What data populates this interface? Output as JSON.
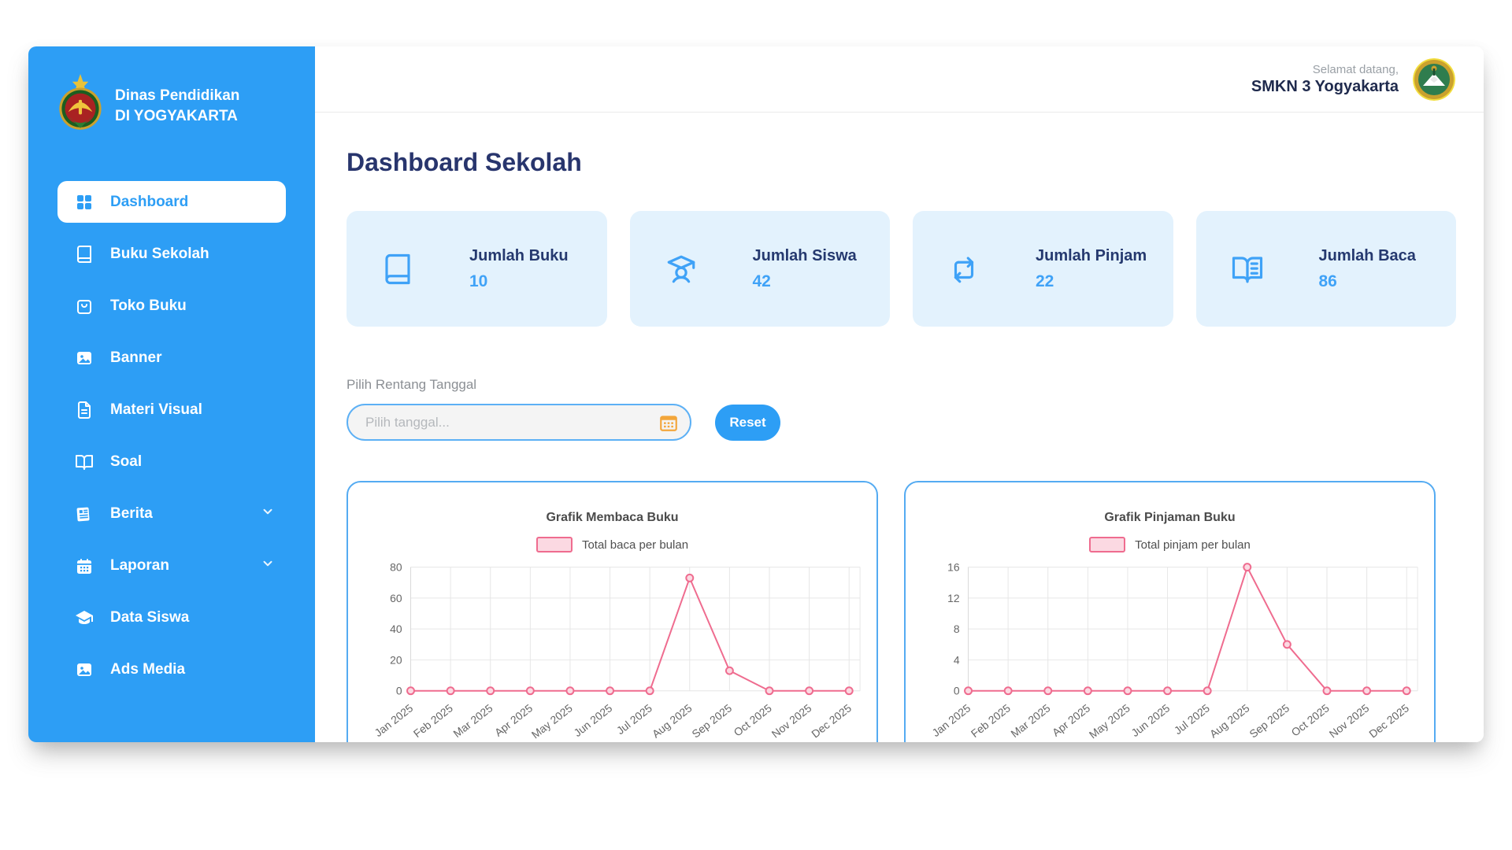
{
  "brand": {
    "line1": "Dinas Pendidikan",
    "line2": "DI YOGYAKARTA"
  },
  "sidebar": {
    "items": [
      {
        "label": "Dashboard",
        "icon": "grid-icon",
        "active": true,
        "chevron": false
      },
      {
        "label": "Buku Sekolah",
        "icon": "book-icon",
        "active": false,
        "chevron": false
      },
      {
        "label": "Toko Buku",
        "icon": "shopping-bag-icon",
        "active": false,
        "chevron": false
      },
      {
        "label": "Banner",
        "icon": "image-icon",
        "active": false,
        "chevron": false
      },
      {
        "label": "Materi Visual",
        "icon": "file-text-icon",
        "active": false,
        "chevron": false
      },
      {
        "label": "Soal",
        "icon": "open-book-icon",
        "active": false,
        "chevron": false
      },
      {
        "label": "Berita",
        "icon": "newspaper-icon",
        "active": false,
        "chevron": true
      },
      {
        "label": "Laporan",
        "icon": "calendar-icon",
        "active": false,
        "chevron": true
      },
      {
        "label": "Data Siswa",
        "icon": "graduation-cap-icon",
        "active": false,
        "chevron": false
      },
      {
        "label": "Ads Media",
        "icon": "media-image-icon",
        "active": false,
        "chevron": false
      }
    ]
  },
  "header": {
    "greeting": "Selamat datang,",
    "school_name": "SMKN 3 Yogyakarta"
  },
  "main": {
    "page_title": "Dashboard Sekolah"
  },
  "stats": [
    {
      "label": "Jumlah Buku",
      "value": "10",
      "icon": "book-icon"
    },
    {
      "label": "Jumlah Siswa",
      "value": "42",
      "icon": "student-icon"
    },
    {
      "label": "Jumlah Pinjam",
      "value": "22",
      "icon": "exchange-icon"
    },
    {
      "label": "Jumlah Baca",
      "value": "86",
      "icon": "open-book-lines-icon"
    }
  ],
  "filter": {
    "label": "Pilih Rentang Tanggal",
    "input_value": "",
    "input_placeholder": "Pilih tanggal...",
    "reset_label": "Reset"
  },
  "chart_data": [
    {
      "type": "line",
      "title": "Grafik Membaca Buku",
      "legend": "Total baca per bulan",
      "legend_position": "top",
      "categories": [
        "Jan 2025",
        "Feb 2025",
        "Mar 2025",
        "Apr 2025",
        "May 2025",
        "Jun 2025",
        "Jul 2025",
        "Aug 2025",
        "Sep 2025",
        "Oct 2025",
        "Nov 2025",
        "Dec 2025"
      ],
      "values": [
        0,
        0,
        0,
        0,
        0,
        0,
        0,
        73,
        13,
        0,
        0,
        0
      ],
      "xlabel": "",
      "ylabel": "",
      "ylim": [
        0,
        80
      ],
      "yticks": [
        0,
        20,
        40,
        60,
        80
      ],
      "grid": true,
      "line_color": "#ef6c8f",
      "point_fill": "#fbd9e2"
    },
    {
      "type": "line",
      "title": "Grafik Pinjaman Buku",
      "legend": "Total pinjam per bulan",
      "legend_position": "top",
      "categories": [
        "Jan 2025",
        "Feb 2025",
        "Mar 2025",
        "Apr 2025",
        "May 2025",
        "Jun 2025",
        "Jul 2025",
        "Aug 2025",
        "Sep 2025",
        "Oct 2025",
        "Nov 2025",
        "Dec 2025"
      ],
      "values": [
        0,
        0,
        0,
        0,
        0,
        0,
        0,
        16,
        6,
        0,
        0,
        0
      ],
      "xlabel": "",
      "ylabel": "",
      "ylim": [
        0,
        16
      ],
      "yticks": [
        0,
        4,
        8,
        12,
        16
      ],
      "grid": true,
      "line_color": "#ef6c8f",
      "point_fill": "#fbd9e2"
    }
  ],
  "colors": {
    "sidebar_blue": "#2d9ef5",
    "accent_blue": "#3fa2f7",
    "navy": "#25396f",
    "stat_card_bg": "#e3f2fd",
    "pink_line": "#ef6c8f",
    "pink_fill": "#fbd9e2",
    "calendar_orange": "#f3a63b"
  }
}
